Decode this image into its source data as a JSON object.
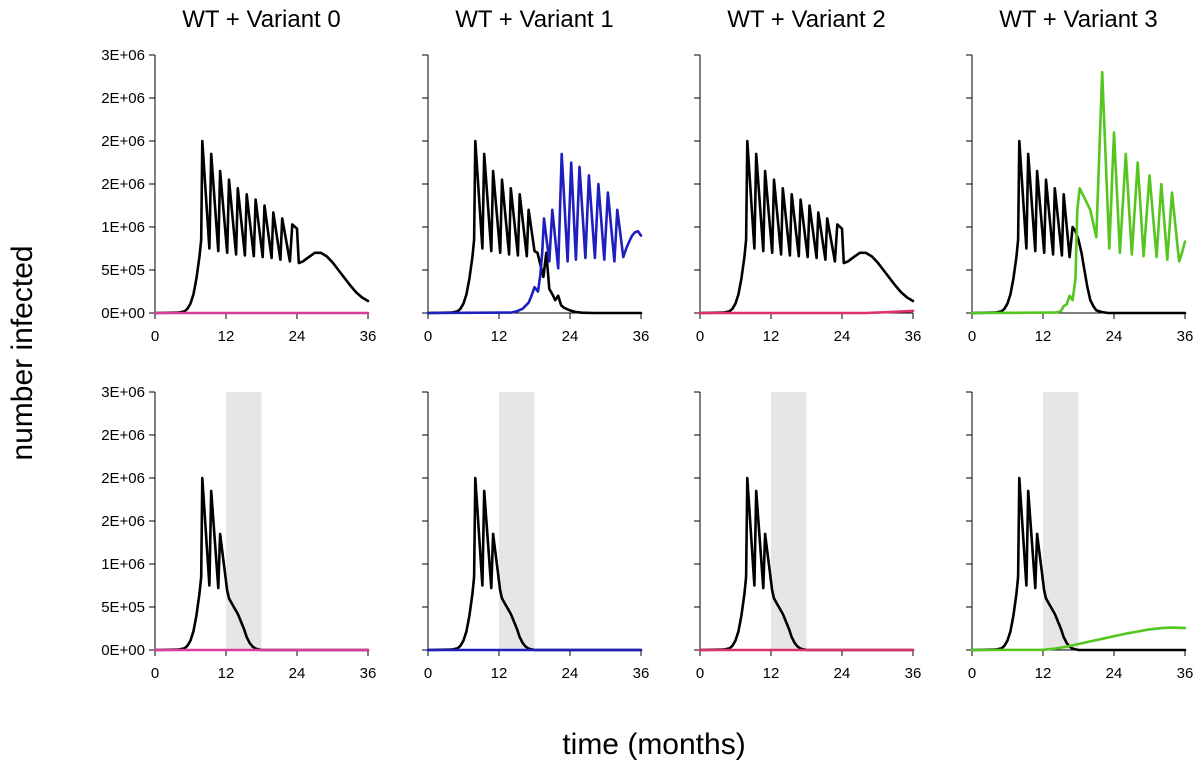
{
  "figure": {
    "ylabel": "number infected",
    "xlabel": "time (months)"
  },
  "colors": {
    "wt": "#000000",
    "variant0": "#d6409a",
    "variant1": "#1f1fbf",
    "variant2": "#e0306a",
    "variant3": "#55c51f",
    "shade": "#e6e6e6"
  },
  "chart_data": [
    {
      "type": "line",
      "title": "WT + Variant 0",
      "row": 1,
      "col": 1,
      "xlabel": "time (months)",
      "ylabel": "number infected",
      "xlim": [
        0,
        36
      ],
      "ylim": [
        0,
        3000000
      ],
      "xticks": [
        "0",
        "12",
        "24",
        "36"
      ],
      "yticks": [
        "0E+00",
        "5E+05",
        "1E+06",
        "2E+06",
        "2E+06",
        "2E+06",
        "3E+06"
      ],
      "shaded_interval": null,
      "series": [
        {
          "color_key": "wt",
          "x": [
            0,
            4,
            5,
            5.5,
            6,
            6.5,
            7,
            7.5,
            7.8,
            8.0,
            9.2,
            9.5,
            10.7,
            11.0,
            12.2,
            12.5,
            13.7,
            14.0,
            15.2,
            15.5,
            16.7,
            17.0,
            18.2,
            18.5,
            19.7,
            20.0,
            21.2,
            21.5,
            22.8,
            23.2,
            24.0,
            24.3,
            25,
            26,
            27,
            28,
            29,
            30,
            31,
            32,
            33,
            34,
            35,
            36
          ],
          "y": [
            0,
            5000,
            20000,
            50000,
            110000,
            220000,
            400000,
            650000,
            850000,
            2000000,
            750000,
            1850000,
            720000,
            1650000,
            700000,
            1550000,
            680000,
            1450000,
            670000,
            1380000,
            660000,
            1320000,
            650000,
            1250000,
            640000,
            1170000,
            620000,
            1100000,
            600000,
            1030000,
            980000,
            580000,
            600000,
            650000,
            700000,
            700000,
            660000,
            590000,
            500000,
            410000,
            320000,
            240000,
            180000,
            140000
          ]
        },
        {
          "color_key": "variant0",
          "x": [
            0,
            36
          ],
          "y": [
            0,
            0
          ]
        }
      ]
    },
    {
      "type": "line",
      "title": "WT + Variant 1",
      "row": 1,
      "col": 2,
      "xlabel": "time (months)",
      "ylabel": "number infected",
      "xlim": [
        0,
        36
      ],
      "ylim": [
        0,
        3000000
      ],
      "xticks": [
        "0",
        "12",
        "24",
        "36"
      ],
      "yticks": [
        "0E+00",
        "5E+05",
        "1E+06",
        "2E+06",
        "2E+06",
        "2E+06",
        "3E+06"
      ],
      "shaded_interval": null,
      "series": [
        {
          "color_key": "wt",
          "x": [
            0,
            4,
            5,
            5.5,
            6,
            6.5,
            7,
            7.5,
            7.8,
            8.0,
            9.2,
            9.5,
            10.7,
            11.0,
            12.2,
            12.5,
            13.7,
            14.0,
            15.2,
            15.5,
            16.7,
            17.0,
            18.0,
            18.5,
            19.0,
            19.5,
            20.0,
            20.5,
            21.0,
            21.5,
            22.0,
            22.5,
            23.0,
            24.0,
            25.0,
            26.0,
            28.0,
            36.0
          ],
          "y": [
            0,
            5000,
            20000,
            50000,
            110000,
            220000,
            400000,
            650000,
            850000,
            2000000,
            750000,
            1850000,
            720000,
            1650000,
            700000,
            1550000,
            680000,
            1450000,
            670000,
            1380000,
            660000,
            1200000,
            720000,
            700000,
            560000,
            420000,
            700000,
            280000,
            220000,
            150000,
            200000,
            90000,
            60000,
            30000,
            10000,
            3000,
            0,
            0
          ]
        },
        {
          "color_key": "variant1",
          "x": [
            0,
            14,
            15,
            16,
            17,
            17.5,
            18,
            18.6,
            19.0,
            19.3,
            19.6,
            20.5,
            21.0,
            22.0,
            22.6,
            23.6,
            24.2,
            25.0,
            25.6,
            26.6,
            27.2,
            28.2,
            28.8,
            29.8,
            30.4,
            31.5,
            32.0,
            33.0,
            33.5,
            34.0,
            34.5,
            35.0,
            35.5,
            36.0
          ],
          "y": [
            0,
            5000,
            20000,
            50000,
            120000,
            200000,
            300000,
            250000,
            450000,
            700000,
            1100000,
            600000,
            1200000,
            520000,
            1850000,
            600000,
            1750000,
            620000,
            1700000,
            640000,
            1600000,
            640000,
            1500000,
            620000,
            1400000,
            600000,
            1200000,
            650000,
            750000,
            830000,
            900000,
            940000,
            950000,
            900000
          ]
        }
      ]
    },
    {
      "type": "line",
      "title": "WT + Variant 2",
      "row": 1,
      "col": 3,
      "xlabel": "time (months)",
      "ylabel": "number infected",
      "xlim": [
        0,
        36
      ],
      "ylim": [
        0,
        3000000
      ],
      "xticks": [
        "0",
        "12",
        "24",
        "36"
      ],
      "yticks": [
        "0E+00",
        "5E+05",
        "1E+06",
        "2E+06",
        "2E+06",
        "2E+06",
        "3E+06"
      ],
      "shaded_interval": null,
      "series": [
        {
          "color_key": "wt",
          "x": [
            0,
            4,
            5,
            5.5,
            6,
            6.5,
            7,
            7.5,
            7.8,
            8.0,
            9.2,
            9.5,
            10.7,
            11.0,
            12.2,
            12.5,
            13.7,
            14.0,
            15.2,
            15.5,
            16.7,
            17.0,
            18.2,
            18.5,
            19.7,
            20.0,
            21.2,
            21.5,
            22.8,
            23.2,
            24.0,
            24.3,
            25,
            26,
            27,
            28,
            29,
            30,
            31,
            32,
            33,
            34,
            35,
            36
          ],
          "y": [
            0,
            5000,
            20000,
            50000,
            110000,
            220000,
            400000,
            650000,
            850000,
            2000000,
            750000,
            1850000,
            720000,
            1650000,
            700000,
            1550000,
            680000,
            1450000,
            670000,
            1380000,
            660000,
            1320000,
            650000,
            1250000,
            640000,
            1170000,
            620000,
            1100000,
            600000,
            1030000,
            980000,
            580000,
            600000,
            650000,
            700000,
            700000,
            660000,
            590000,
            500000,
            410000,
            320000,
            240000,
            180000,
            140000
          ]
        },
        {
          "color_key": "variant2",
          "x": [
            0,
            28,
            32,
            36
          ],
          "y": [
            0,
            0,
            10000,
            25000
          ]
        }
      ]
    },
    {
      "type": "line",
      "title": "WT + Variant 3",
      "row": 1,
      "col": 4,
      "xlabel": "time (months)",
      "ylabel": "number infected",
      "xlim": [
        0,
        36
      ],
      "ylim": [
        0,
        3000000
      ],
      "xticks": [
        "0",
        "12",
        "24",
        "36"
      ],
      "yticks": [
        "0E+00",
        "5E+05",
        "1E+06",
        "2E+06",
        "2E+06",
        "2E+06",
        "3E+06"
      ],
      "shaded_interval": null,
      "series": [
        {
          "color_key": "wt",
          "x": [
            0,
            4,
            5,
            5.5,
            6,
            6.5,
            7,
            7.5,
            7.8,
            8.0,
            9.2,
            9.5,
            10.7,
            11.0,
            12.2,
            12.5,
            13.7,
            14.0,
            15.2,
            15.5,
            16.5,
            17.0,
            17.5,
            18.0,
            18.5,
            19.0,
            19.5,
            20.0,
            20.5,
            21.0,
            22.0,
            23.0,
            36.0
          ],
          "y": [
            0,
            5000,
            20000,
            50000,
            110000,
            220000,
            400000,
            650000,
            850000,
            2000000,
            750000,
            1850000,
            720000,
            1650000,
            700000,
            1550000,
            680000,
            1450000,
            670000,
            1380000,
            650000,
            1000000,
            950000,
            850000,
            700000,
            500000,
            300000,
            150000,
            80000,
            30000,
            10000,
            0,
            0
          ]
        },
        {
          "color_key": "variant3",
          "x": [
            0,
            14,
            15,
            15.5,
            16,
            16.5,
            17,
            17.5,
            17.8,
            18.2,
            20.0,
            21.0,
            22.0,
            23.2,
            24.0,
            25.0,
            26.0,
            27.0,
            28.0,
            29.0,
            30.0,
            31.2,
            32.0,
            33.0,
            33.8,
            35.0,
            35.5,
            36.0
          ],
          "y": [
            0,
            5000,
            20000,
            80000,
            100000,
            200000,
            150000,
            400000,
            1200000,
            1450000,
            1200000,
            880000,
            2800000,
            750000,
            2100000,
            700000,
            1850000,
            680000,
            1750000,
            660000,
            1600000,
            650000,
            1500000,
            620000,
            1400000,
            600000,
            700000,
            830000
          ]
        }
      ]
    },
    {
      "type": "line",
      "title": "",
      "row": 2,
      "col": 1,
      "xlabel": "time (months)",
      "ylabel": "number infected",
      "xlim": [
        0,
        36
      ],
      "ylim": [
        0,
        3000000
      ],
      "xticks": [
        "0",
        "12",
        "24",
        "36"
      ],
      "yticks": [
        "0E+00",
        "5E+05",
        "1E+06",
        "2E+06",
        "2E+06",
        "2E+06",
        "3E+06"
      ],
      "shaded_interval": [
        12,
        18
      ],
      "series": [
        {
          "color_key": "wt",
          "x": [
            0,
            4,
            5,
            5.5,
            6,
            6.5,
            7,
            7.5,
            7.8,
            8.0,
            9.2,
            9.5,
            10.7,
            11.0,
            12.2,
            12.5,
            13.0,
            14.0,
            15.0,
            15.5,
            16.0,
            16.5,
            17.0,
            18.0,
            19.0,
            36.0
          ],
          "y": [
            0,
            5000,
            20000,
            50000,
            110000,
            220000,
            400000,
            650000,
            850000,
            2000000,
            750000,
            1850000,
            720000,
            1350000,
            690000,
            600000,
            540000,
            420000,
            250000,
            150000,
            80000,
            40000,
            15000,
            0,
            0,
            0
          ]
        },
        {
          "color_key": "variant0",
          "x": [
            0,
            36
          ],
          "y": [
            0,
            0
          ]
        }
      ]
    },
    {
      "type": "line",
      "title": "",
      "row": 2,
      "col": 2,
      "xlabel": "time (months)",
      "ylabel": "number infected",
      "xlim": [
        0,
        36
      ],
      "ylim": [
        0,
        3000000
      ],
      "xticks": [
        "0",
        "12",
        "24",
        "36"
      ],
      "yticks": [
        "0E+00",
        "5E+05",
        "1E+06",
        "2E+06",
        "2E+06",
        "2E+06",
        "3E+06"
      ],
      "shaded_interval": [
        12,
        18
      ],
      "series": [
        {
          "color_key": "wt",
          "x": [
            0,
            4,
            5,
            5.5,
            6,
            6.5,
            7,
            7.5,
            7.8,
            8.0,
            9.2,
            9.5,
            10.7,
            11.0,
            12.2,
            12.5,
            13.0,
            14.0,
            15.0,
            15.5,
            16.0,
            16.5,
            17.0,
            18.0,
            19.0,
            36.0
          ],
          "y": [
            0,
            5000,
            20000,
            50000,
            110000,
            220000,
            400000,
            650000,
            850000,
            2000000,
            750000,
            1850000,
            720000,
            1350000,
            690000,
            600000,
            540000,
            420000,
            250000,
            150000,
            80000,
            40000,
            15000,
            0,
            0,
            0
          ]
        },
        {
          "color_key": "variant1",
          "x": [
            0,
            36
          ],
          "y": [
            0,
            0
          ]
        }
      ]
    },
    {
      "type": "line",
      "title": "",
      "row": 2,
      "col": 3,
      "xlabel": "time (months)",
      "ylabel": "number infected",
      "xlim": [
        0,
        36
      ],
      "ylim": [
        0,
        3000000
      ],
      "xticks": [
        "0",
        "12",
        "24",
        "36"
      ],
      "yticks": [
        "0E+00",
        "5E+05",
        "1E+06",
        "2E+06",
        "2E+06",
        "2E+06",
        "3E+06"
      ],
      "shaded_interval": [
        12,
        18
      ],
      "series": [
        {
          "color_key": "wt",
          "x": [
            0,
            4,
            5,
            5.5,
            6,
            6.5,
            7,
            7.5,
            7.8,
            8.0,
            9.2,
            9.5,
            10.7,
            11.0,
            12.2,
            12.5,
            13.0,
            14.0,
            15.0,
            15.5,
            16.0,
            16.5,
            17.0,
            18.0,
            19.0,
            36.0
          ],
          "y": [
            0,
            5000,
            20000,
            50000,
            110000,
            220000,
            400000,
            650000,
            850000,
            2000000,
            750000,
            1850000,
            720000,
            1350000,
            690000,
            600000,
            540000,
            420000,
            250000,
            150000,
            80000,
            40000,
            15000,
            0,
            0,
            0
          ]
        },
        {
          "color_key": "variant2",
          "x": [
            0,
            36
          ],
          "y": [
            0,
            0
          ]
        }
      ]
    },
    {
      "type": "line",
      "title": "",
      "row": 2,
      "col": 4,
      "xlabel": "time (months)",
      "ylabel": "number infected",
      "xlim": [
        0,
        36
      ],
      "ylim": [
        0,
        3000000
      ],
      "xticks": [
        "0",
        "12",
        "24",
        "36"
      ],
      "yticks": [
        "0E+00",
        "5E+05",
        "1E+06",
        "2E+06",
        "2E+06",
        "2E+06",
        "3E+06"
      ],
      "shaded_interval": [
        12,
        18
      ],
      "series": [
        {
          "color_key": "wt",
          "x": [
            0,
            4,
            5,
            5.5,
            6,
            6.5,
            7,
            7.5,
            7.8,
            8.0,
            9.2,
            9.5,
            10.7,
            11.0,
            12.2,
            12.5,
            13.0,
            14.0,
            15.0,
            15.5,
            16.0,
            16.5,
            17.0,
            18.0,
            19.0,
            36.0
          ],
          "y": [
            0,
            5000,
            20000,
            50000,
            110000,
            220000,
            400000,
            650000,
            850000,
            2000000,
            750000,
            1850000,
            720000,
            1350000,
            690000,
            600000,
            540000,
            420000,
            250000,
            150000,
            80000,
            40000,
            15000,
            0,
            0,
            0
          ]
        },
        {
          "color_key": "variant3",
          "x": [
            0,
            12,
            14,
            16,
            18,
            20,
            22,
            24,
            26,
            28,
            30,
            32,
            34,
            35,
            36
          ],
          "y": [
            0,
            2000,
            15000,
            40000,
            70000,
            100000,
            130000,
            160000,
            190000,
            215000,
            240000,
            255000,
            260000,
            258000,
            255000
          ]
        }
      ]
    }
  ]
}
